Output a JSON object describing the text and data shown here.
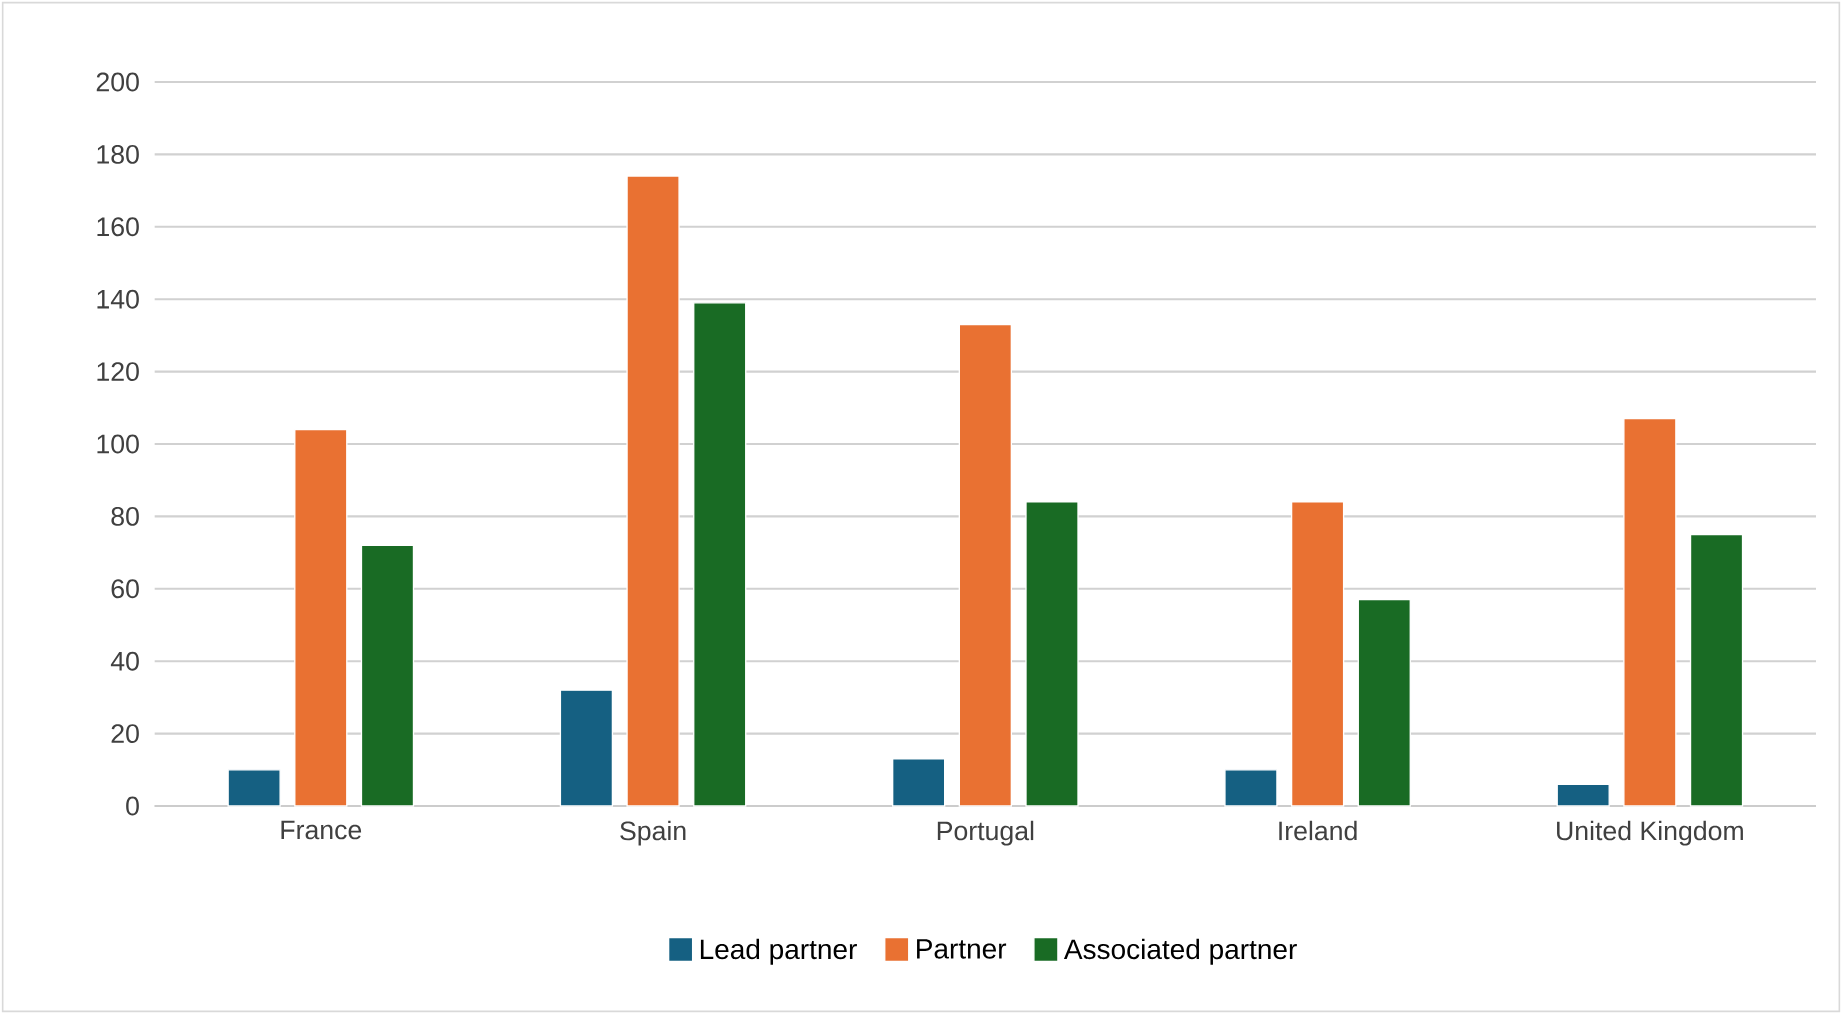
{
  "chart_data": {
    "type": "bar",
    "categories": [
      "France",
      "Spain",
      "Portugal",
      "Ireland",
      "United Kingdom"
    ],
    "series": [
      {
        "name": "Lead partner",
        "color": "#156082",
        "values": [
          10,
          32,
          13,
          10,
          6
        ]
      },
      {
        "name": "Partner",
        "color": "#e97132",
        "values": [
          104,
          174,
          133,
          84,
          107
        ]
      },
      {
        "name": "Associated partner",
        "color": "#196b24",
        "values": [
          72,
          139,
          84,
          57,
          75
        ]
      }
    ],
    "ylim": [
      0,
      200
    ],
    "yticks": [
      0,
      20,
      40,
      60,
      80,
      100,
      120,
      140,
      160,
      180,
      200
    ],
    "grid": "y",
    "legend": "bottom"
  }
}
